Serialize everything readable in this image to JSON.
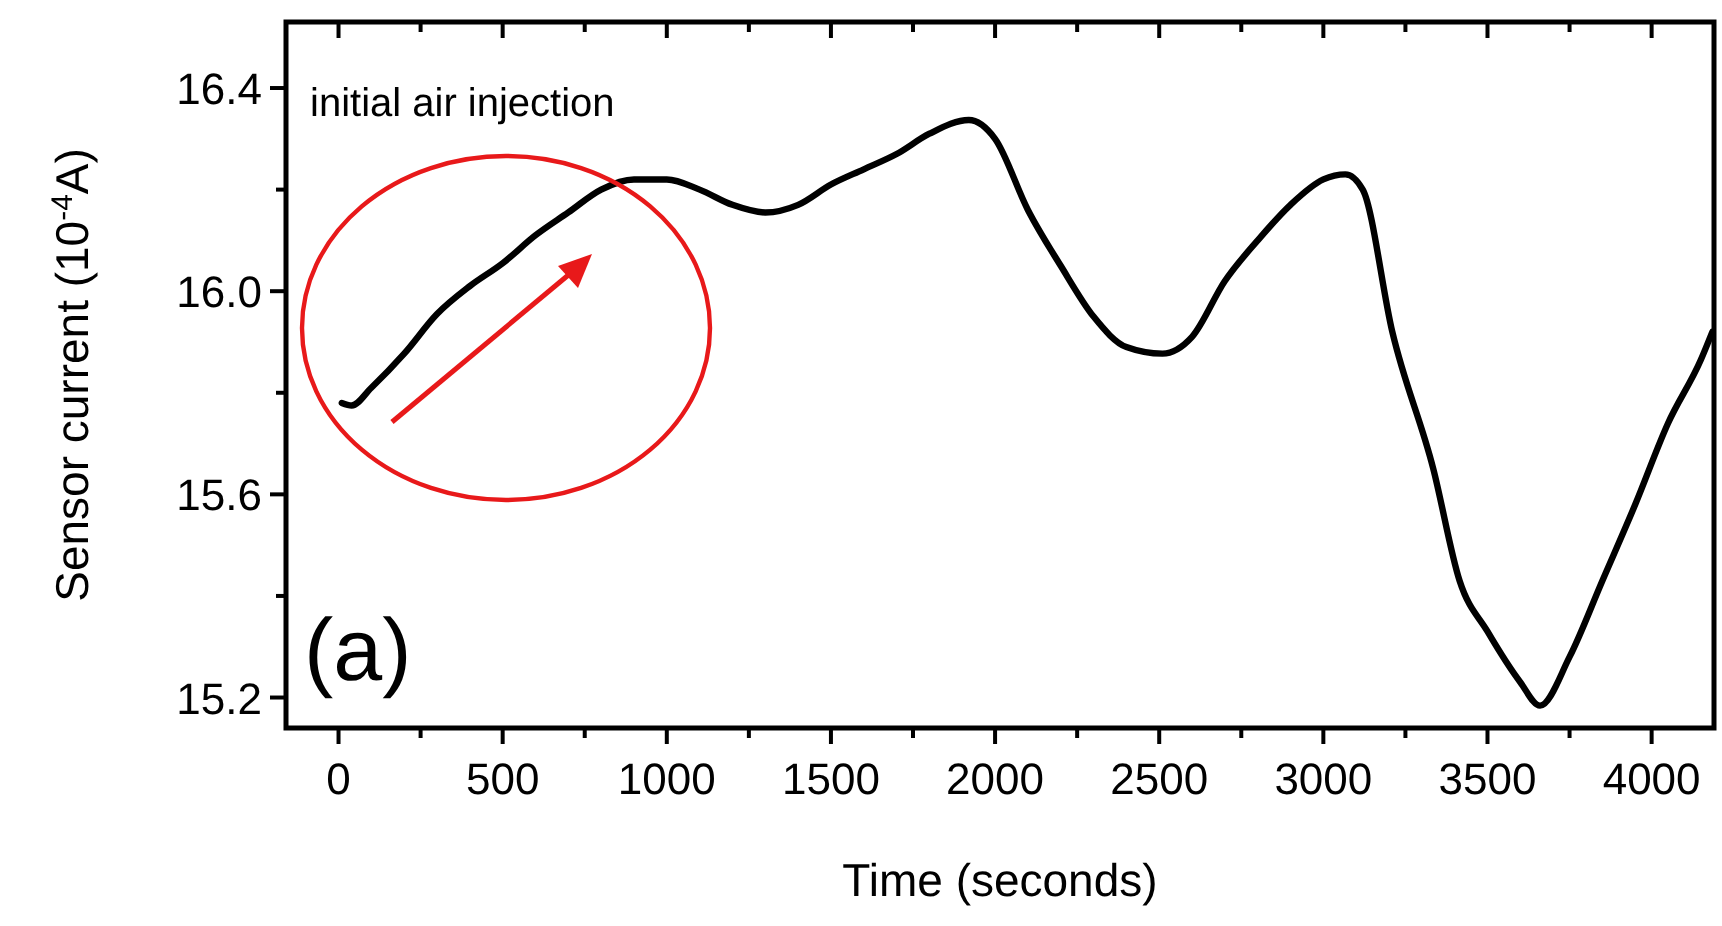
{
  "chart_data": {
    "type": "line",
    "xlabel": "Time (seconds)",
    "ylabel": "Sensor current (10$^{-4}$A)",
    "annotations": [
      "initial air injection",
      "(a)"
    ],
    "xlim": [
      -160,
      4190
    ],
    "ylim": [
      15.14,
      16.53
    ],
    "xticks": [
      0,
      {
        "value": 250,
        "label": null
      },
      500,
      {
        "value": 750,
        "label": null
      },
      1000,
      {
        "value": 1250,
        "label": null
      },
      1500,
      {
        "value": 1750,
        "label": null
      },
      2000,
      {
        "value": 2250,
        "label": null
      },
      2500,
      {
        "value": 2750,
        "label": null
      },
      3000,
      {
        "value": 3250,
        "label": null
      },
      3500,
      {
        "value": 3750,
        "label": null
      },
      4000
    ],
    "yticks": [
      {
        "value": 15.2,
        "label": "15.2"
      },
      {
        "value": 15.4,
        "label": null
      },
      {
        "value": 15.6,
        "label": "15.6"
      },
      {
        "value": 15.8,
        "label": null
      },
      {
        "value": 16.0,
        "label": "16.0"
      },
      {
        "value": 16.2,
        "label": null
      },
      {
        "value": 16.4,
        "label": "16.4"
      }
    ],
    "grid": false,
    "marker": "none",
    "line_style": "solid",
    "series": [
      {
        "color": "#000000",
        "x": [
          10,
          40,
          100,
          200,
          300,
          400,
          500,
          600,
          700,
          800,
          900,
          1000,
          1100,
          1200,
          1300,
          1400,
          1500,
          1600,
          1700,
          1800,
          1920,
          2000,
          2100,
          2200,
          2300,
          2400,
          2510,
          2600,
          2700,
          2800,
          2900,
          3000,
          3067,
          3120,
          3210,
          3335,
          3415,
          3500,
          3600,
          3660,
          3750,
          3850,
          3950,
          4050,
          4150,
          4185
        ],
        "values": [
          15.78,
          15.775,
          15.81,
          15.877,
          15.955,
          16.01,
          16.055,
          16.11,
          16.155,
          16.2,
          16.22,
          16.22,
          16.2,
          16.17,
          16.155,
          16.17,
          16.21,
          16.24,
          16.27,
          16.31,
          16.337,
          16.3,
          16.16,
          16.05,
          15.95,
          15.89,
          15.877,
          15.91,
          16.02,
          16.1,
          16.17,
          16.22,
          16.23,
          16.2,
          15.92,
          15.65,
          15.43,
          15.33,
          15.23,
          15.184,
          15.28,
          15.43,
          15.58,
          15.74,
          15.865,
          15.92
        ]
      }
    ]
  }
}
